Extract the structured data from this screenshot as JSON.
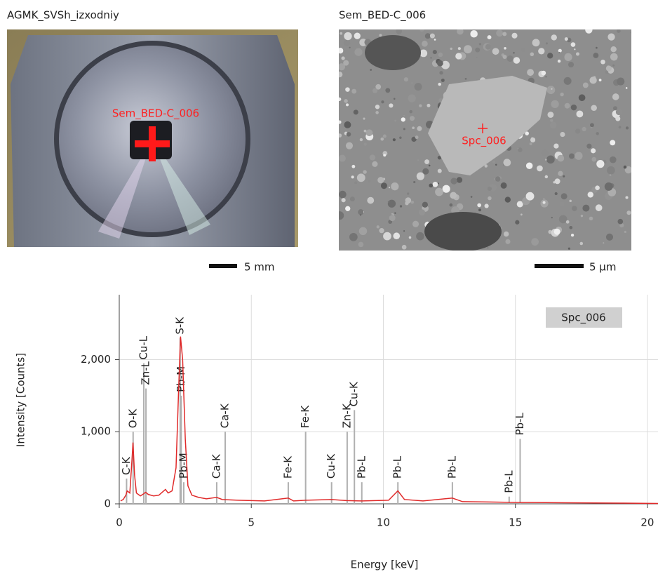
{
  "images": [
    {
      "title": "AGMK_SVSh_izxodniy",
      "overlay_label": "Sem_BED-C_006",
      "scale_label": "5 mm"
    },
    {
      "title": "Sem_BED-C_006",
      "overlay_label": "Spc_006",
      "scale_label": "5 µm"
    }
  ],
  "chart_data": {
    "type": "line",
    "xlabel": "Energy [keV]",
    "ylabel": "Intensity [Counts]",
    "x": [
      0.05,
      0.15,
      0.25,
      0.3,
      0.4,
      0.48,
      0.52,
      0.58,
      0.65,
      0.8,
      0.93,
      1.0,
      1.1,
      1.3,
      1.5,
      1.75,
      1.85,
      2.0,
      2.15,
      2.25,
      2.32,
      2.4,
      2.5,
      2.6,
      2.75,
      3.0,
      3.3,
      3.69,
      3.9,
      4.5,
      5.5,
      6.4,
      6.6,
      7.06,
      8.04,
      8.6,
      9.2,
      10.2,
      10.55,
      10.8,
      11.5,
      12.61,
      13,
      14,
      15,
      17,
      19,
      20.4
    ],
    "series": [
      {
        "name": "Spc_006",
        "color": "#e02a2a",
        "values": [
          40,
          60,
          120,
          180,
          150,
          600,
          850,
          400,
          150,
          110,
          140,
          160,
          130,
          110,
          120,
          200,
          150,
          180,
          500,
          1600,
          2320,
          2000,
          900,
          250,
          120,
          90,
          70,
          90,
          60,
          50,
          40,
          80,
          40,
          50,
          60,
          45,
          40,
          50,
          180,
          60,
          40,
          80,
          30,
          25,
          20,
          15,
          10,
          5
        ]
      }
    ],
    "peak_markers": [
      {
        "label": "C-K",
        "energy": 0.277,
        "height": 350
      },
      {
        "label": "O-K",
        "energy": 0.525,
        "height": 1000
      },
      {
        "label": "Cu-L",
        "energy": 0.93,
        "height": 1950
      },
      {
        "label": "Zn-L",
        "energy": 1.012,
        "height": 1600
      },
      {
        "label": "S-K",
        "energy": 2.307,
        "height": 2300
      },
      {
        "label": "Pb-M",
        "energy": 2.345,
        "height": 1500
      },
      {
        "label": "Pb-M",
        "energy": 2.442,
        "height": 300
      },
      {
        "label": "Ca-K",
        "energy": 3.69,
        "height": 300
      },
      {
        "label": "Ca-K",
        "energy": 4.012,
        "height": 1000
      },
      {
        "label": "Fe-K",
        "energy": 6.4,
        "height": 300
      },
      {
        "label": "Fe-K",
        "energy": 7.057,
        "height": 1000
      },
      {
        "label": "Cu-K",
        "energy": 8.04,
        "height": 300
      },
      {
        "label": "Zn-K",
        "energy": 8.63,
        "height": 1000
      },
      {
        "label": "Cu-K",
        "energy": 8.904,
        "height": 1300
      },
      {
        "label": "Pb-L",
        "energy": 9.184,
        "height": 300
      },
      {
        "label": "Pb-L",
        "energy": 10.551,
        "height": 300
      },
      {
        "label": "Pb-L",
        "energy": 12.614,
        "height": 300
      },
      {
        "label": "Pb-L",
        "energy": 14.764,
        "height": 100
      },
      {
        "label": "Pb-L",
        "energy": 15.18,
        "height": 900
      }
    ],
    "xlim": [
      0,
      20.4
    ],
    "ylim": [
      0,
      2900
    ],
    "xticks": [
      0,
      5,
      10,
      15,
      20
    ],
    "yticks": [
      0,
      {
        "value": 1000,
        "label": "1,000"
      },
      {
        "value": 2000,
        "label": "2,000"
      }
    ],
    "grid": true,
    "legend": "upper right"
  }
}
